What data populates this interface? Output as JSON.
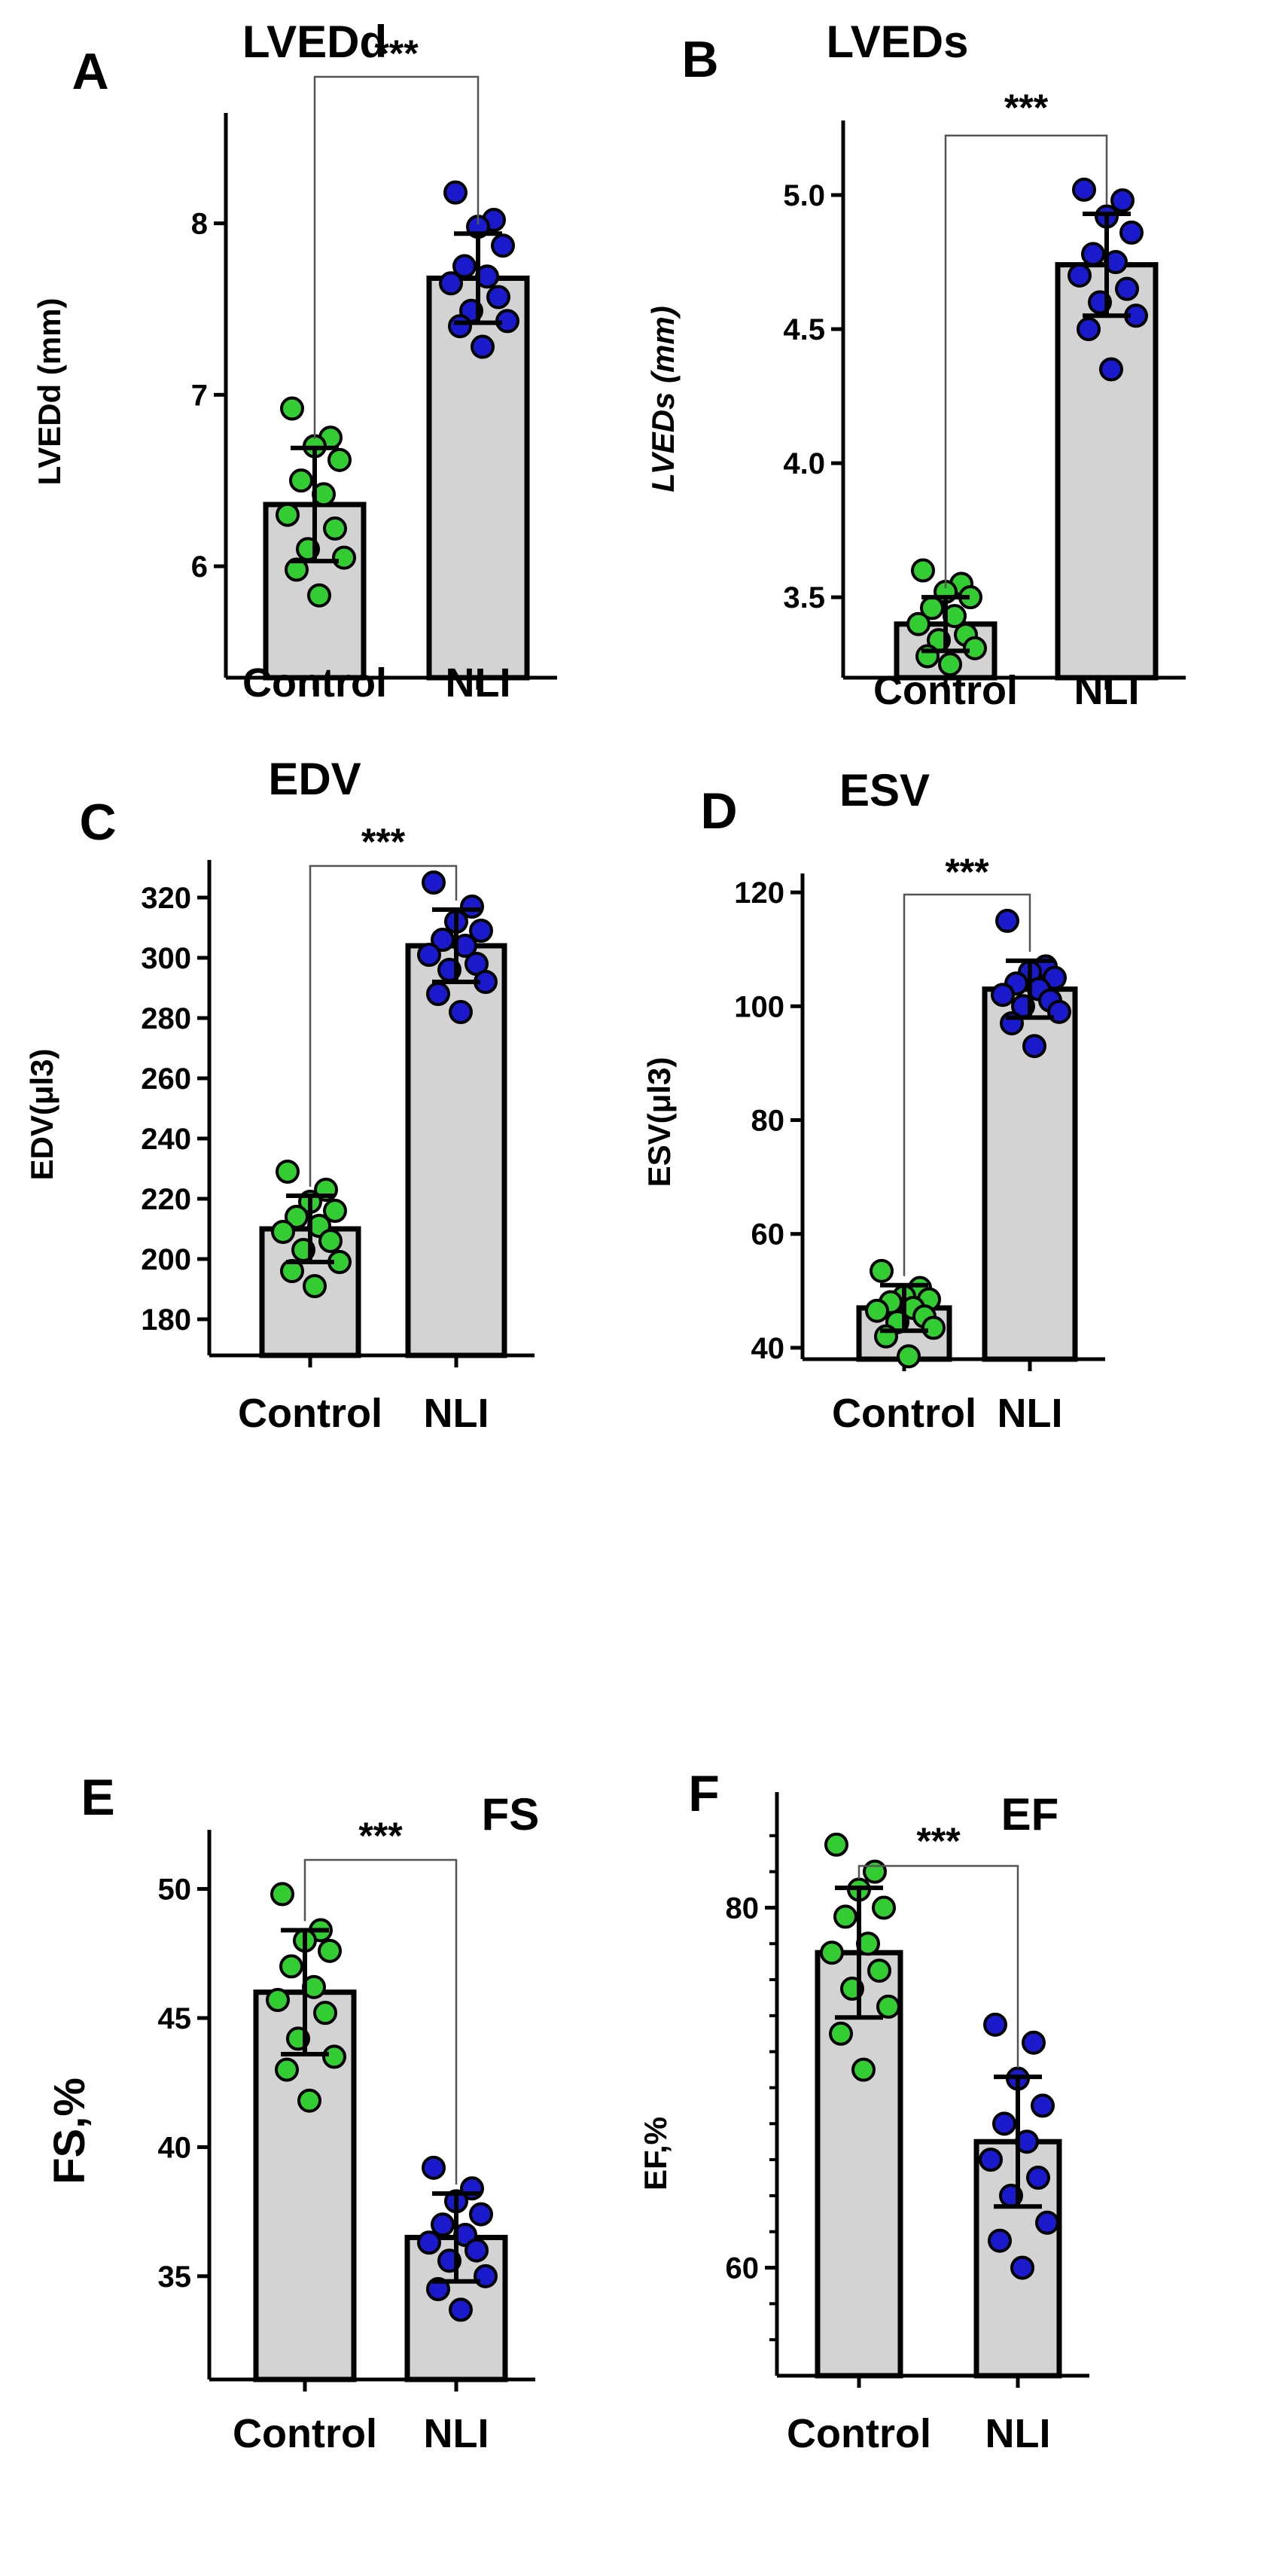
{
  "colors": {
    "bar_fill": "#d3d3d3",
    "axis": "#000000",
    "control_dot": "#33cc33",
    "nli_dot": "#1a1acc"
  },
  "chart_data": [
    {
      "panel": "A",
      "title": "LVEDd",
      "ylabel": "LVEDd (mm)",
      "type": "bar",
      "categories": [
        "Control",
        "NLI"
      ],
      "significance": "***",
      "ylim": [
        5.35,
        8.6
      ],
      "yticks": [
        6,
        7,
        8
      ],
      "ytick_labels": [
        "6",
        "7",
        "8"
      ],
      "means": [
        6.36,
        7.68
      ],
      "errors": [
        0.33,
        0.26
      ],
      "points": [
        [
          6.92,
          6.75,
          6.7,
          6.62,
          6.5,
          6.42,
          6.3,
          6.22,
          6.1,
          6.05,
          5.98,
          5.83
        ],
        [
          8.18,
          8.02,
          7.98,
          7.87,
          7.75,
          7.69,
          7.65,
          7.57,
          7.49,
          7.43,
          7.4,
          7.28
        ]
      ]
    },
    {
      "panel": "B",
      "title": "LVEDs",
      "ylabel": "LVEDs (mm)",
      "type": "bar",
      "categories": [
        "Control",
        "NLI"
      ],
      "significance": "***",
      "ylim": [
        3.2,
        5.25
      ],
      "yticks": [
        3.5,
        4.0,
        4.5,
        5.0
      ],
      "ytick_labels": [
        "3.5",
        "4.0",
        "4.5",
        "5.0"
      ],
      "means": [
        3.4,
        4.74
      ],
      "errors": [
        0.1,
        0.19
      ],
      "points": [
        [
          3.6,
          3.55,
          3.52,
          3.5,
          3.46,
          3.43,
          3.4,
          3.36,
          3.34,
          3.31,
          3.28,
          3.25
        ],
        [
          5.02,
          4.98,
          4.92,
          4.86,
          4.78,
          4.75,
          4.7,
          4.65,
          4.6,
          4.55,
          4.5,
          4.35
        ]
      ]
    },
    {
      "panel": "C",
      "title": "EDV",
      "ylabel": "EDV(μl3)",
      "type": "bar",
      "categories": [
        "Control",
        "NLI"
      ],
      "significance": "***",
      "ylim": [
        168,
        330
      ],
      "yticks": [
        180,
        200,
        220,
        240,
        260,
        280,
        300,
        320
      ],
      "ytick_labels": [
        "180",
        "200",
        "220",
        "240",
        "260",
        "280",
        "300",
        "320"
      ],
      "means": [
        210,
        304
      ],
      "errors": [
        11,
        12
      ],
      "points": [
        [
          229,
          223,
          219,
          216,
          214,
          211,
          209,
          206,
          203,
          199,
          196,
          191
        ],
        [
          325,
          317,
          312,
          309,
          306,
          304,
          301,
          298,
          296,
          292,
          288,
          282
        ]
      ]
    },
    {
      "panel": "D",
      "title": "ESV",
      "ylabel": "ESV(μl3)",
      "type": "bar",
      "categories": [
        "Control",
        "NLI"
      ],
      "significance": "***",
      "ylim": [
        38,
        122
      ],
      "yticks": [
        40,
        60,
        80,
        100,
        120
      ],
      "ytick_labels": [
        "40",
        "60",
        "80",
        "100",
        "120"
      ],
      "means": [
        47,
        103
      ],
      "errors": [
        4,
        5
      ],
      "points": [
        [
          53.5,
          50.5,
          49.0,
          48.5,
          48.0,
          47.0,
          46.5,
          45.5,
          44.5,
          43.5,
          42.0,
          38.5
        ],
        [
          115,
          107,
          106,
          105,
          104,
          103,
          102,
          101,
          100,
          99,
          97,
          93
        ]
      ]
    },
    {
      "panel": "E",
      "title": "FS",
      "ylabel": "FS,%",
      "type": "bar",
      "categories": [
        "Control",
        "NLI"
      ],
      "significance": "***",
      "ylim": [
        31,
        52
      ],
      "yticks": [
        35,
        40,
        45,
        50
      ],
      "ytick_labels": [
        "35",
        "40",
        "45",
        "50"
      ],
      "means": [
        46.0,
        36.5
      ],
      "errors": [
        2.4,
        1.7
      ],
      "points": [
        [
          49.8,
          48.4,
          48.0,
          47.6,
          47.0,
          46.2,
          45.7,
          45.2,
          44.2,
          43.5,
          43.0,
          41.8
        ],
        [
          39.2,
          38.4,
          37.9,
          37.4,
          37.0,
          36.6,
          36.3,
          36.0,
          35.6,
          35.0,
          34.5,
          33.7
        ]
      ]
    },
    {
      "panel": "F",
      "title": "EF",
      "ylabel": "EF,%",
      "type": "bar",
      "categories": [
        "Control",
        "NLI"
      ],
      "significance": "***",
      "ylim": [
        54,
        86
      ],
      "yticks": [
        60,
        80
      ],
      "ytick_labels": [
        "60",
        "80"
      ],
      "minor_yticks": [
        56,
        58,
        62,
        64,
        66,
        68,
        70,
        72,
        74,
        76,
        78,
        82,
        84
      ],
      "means": [
        77.5,
        67.0
      ],
      "errors": [
        3.6,
        3.6
      ],
      "points": [
        [
          83.5,
          82.0,
          81.0,
          80.0,
          79.5,
          78.0,
          77.5,
          76.5,
          75.5,
          74.5,
          73.0,
          71.0
        ],
        [
          73.5,
          72.5,
          70.5,
          69.0,
          68.0,
          67.0,
          66.0,
          65.0,
          64.0,
          62.5,
          61.5,
          60.0
        ]
      ]
    }
  ]
}
